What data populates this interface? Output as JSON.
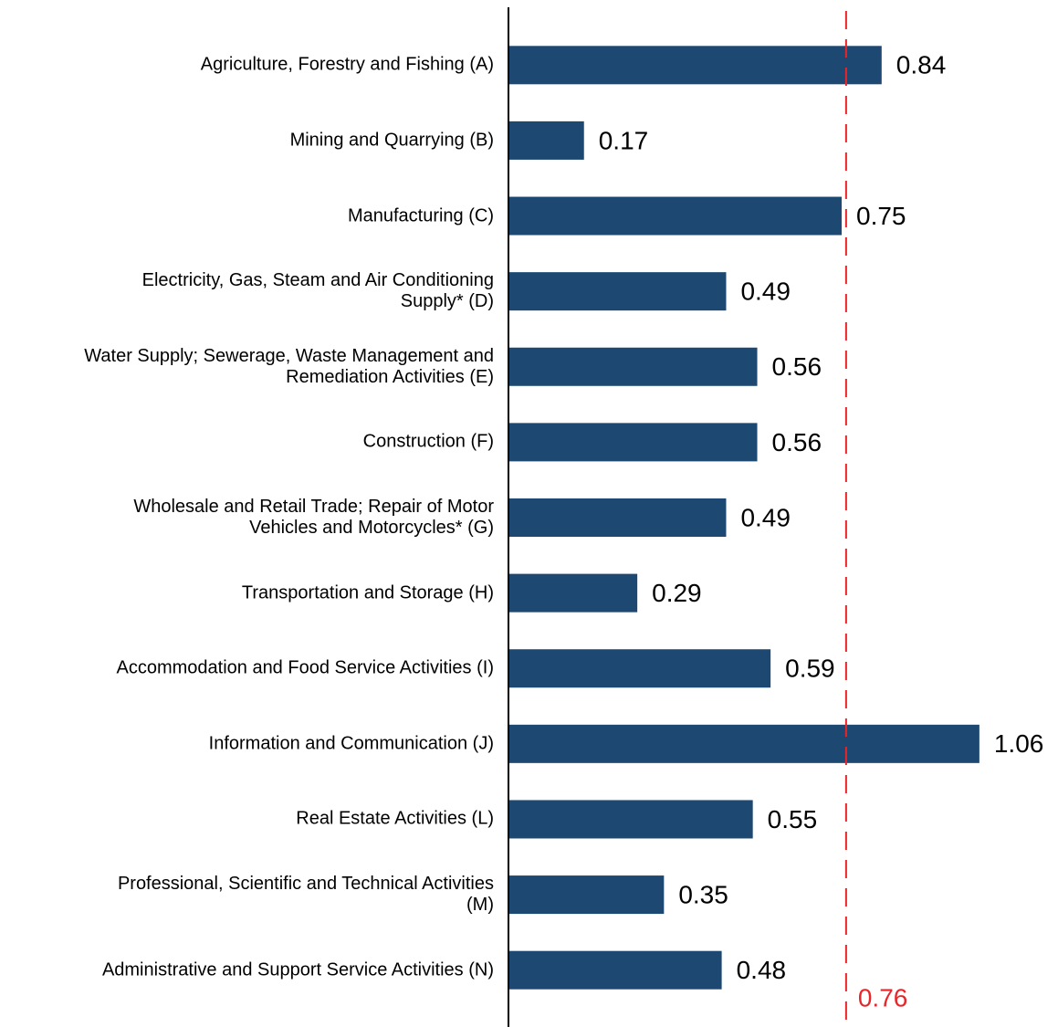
{
  "chart_data": {
    "type": "bar",
    "orientation": "horizontal",
    "categories": [
      "Agriculture, Forestry and Fishing (A)",
      "Mining and Quarrying (B)",
      "Manufacturing (C)",
      "Electricity, Gas, Steam and Air Conditioning\nSupply* (D)",
      "Water Supply; Sewerage, Waste Management and\nRemediation Activities (E)",
      "Construction (F)",
      "Wholesale and Retail Trade; Repair of Motor\nVehicles and Motorcycles* (G)",
      "Transportation and Storage (H)",
      "Accommodation and Food Service Activities (I)",
      "Information and Communication (J)",
      "Real Estate Activities (L)",
      "Professional, Scientific and Technical Activities\n(M)",
      "Administrative and Support Service Activities (N)"
    ],
    "values": [
      0.84,
      0.17,
      0.75,
      0.49,
      0.56,
      0.56,
      0.49,
      0.29,
      0.59,
      1.06,
      0.55,
      0.35,
      0.48
    ],
    "color": "#1d4871",
    "xlim": [
      0,
      1.2
    ],
    "reference_line": {
      "value": 0.76,
      "color": "#e8262a"
    }
  }
}
